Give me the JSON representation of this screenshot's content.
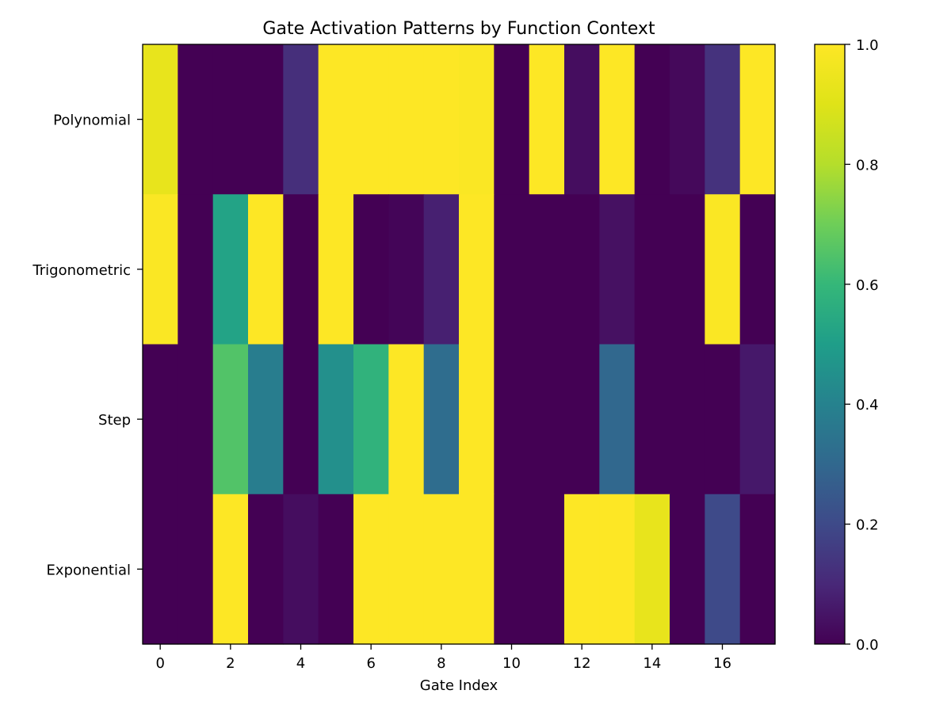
{
  "chart_data": {
    "type": "heatmap",
    "title": "Gate Activation Patterns by Function Context",
    "xlabel": "Gate Index",
    "ylabel": "",
    "rows": [
      "Polynomial",
      "Trigonometric",
      "Step",
      "Exponential"
    ],
    "x_ticks": [
      0,
      2,
      4,
      6,
      8,
      10,
      12,
      14,
      16
    ],
    "columns": 18,
    "colormap": "viridis",
    "value_range": [
      0,
      1
    ],
    "colorbar_ticks": [
      "0.0",
      "0.2",
      "0.4",
      "0.6",
      "0.8",
      "1.0"
    ],
    "values": [
      [
        0.93,
        0.0,
        0.0,
        0.0,
        0.12,
        1.0,
        1.0,
        1.0,
        1.0,
        0.99,
        0.0,
        1.0,
        0.03,
        1.0,
        0.0,
        0.02,
        0.13,
        1.0
      ],
      [
        0.99,
        0.0,
        0.52,
        1.0,
        0.0,
        1.0,
        0.0,
        0.01,
        0.08,
        1.0,
        0.0,
        0.0,
        0.0,
        0.04,
        0.0,
        0.0,
        0.99,
        0.0
      ],
      [
        0.0,
        0.0,
        0.65,
        0.38,
        0.0,
        0.45,
        0.58,
        1.0,
        0.32,
        1.0,
        0.0,
        0.0,
        0.0,
        0.3,
        0.0,
        0.0,
        0.0,
        0.06
      ],
      [
        0.0,
        0.0,
        1.0,
        0.0,
        0.03,
        0.0,
        1.0,
        1.0,
        1.0,
        1.0,
        0.0,
        0.0,
        1.0,
        1.0,
        0.93,
        0.0,
        0.2,
        0.0
      ]
    ]
  }
}
